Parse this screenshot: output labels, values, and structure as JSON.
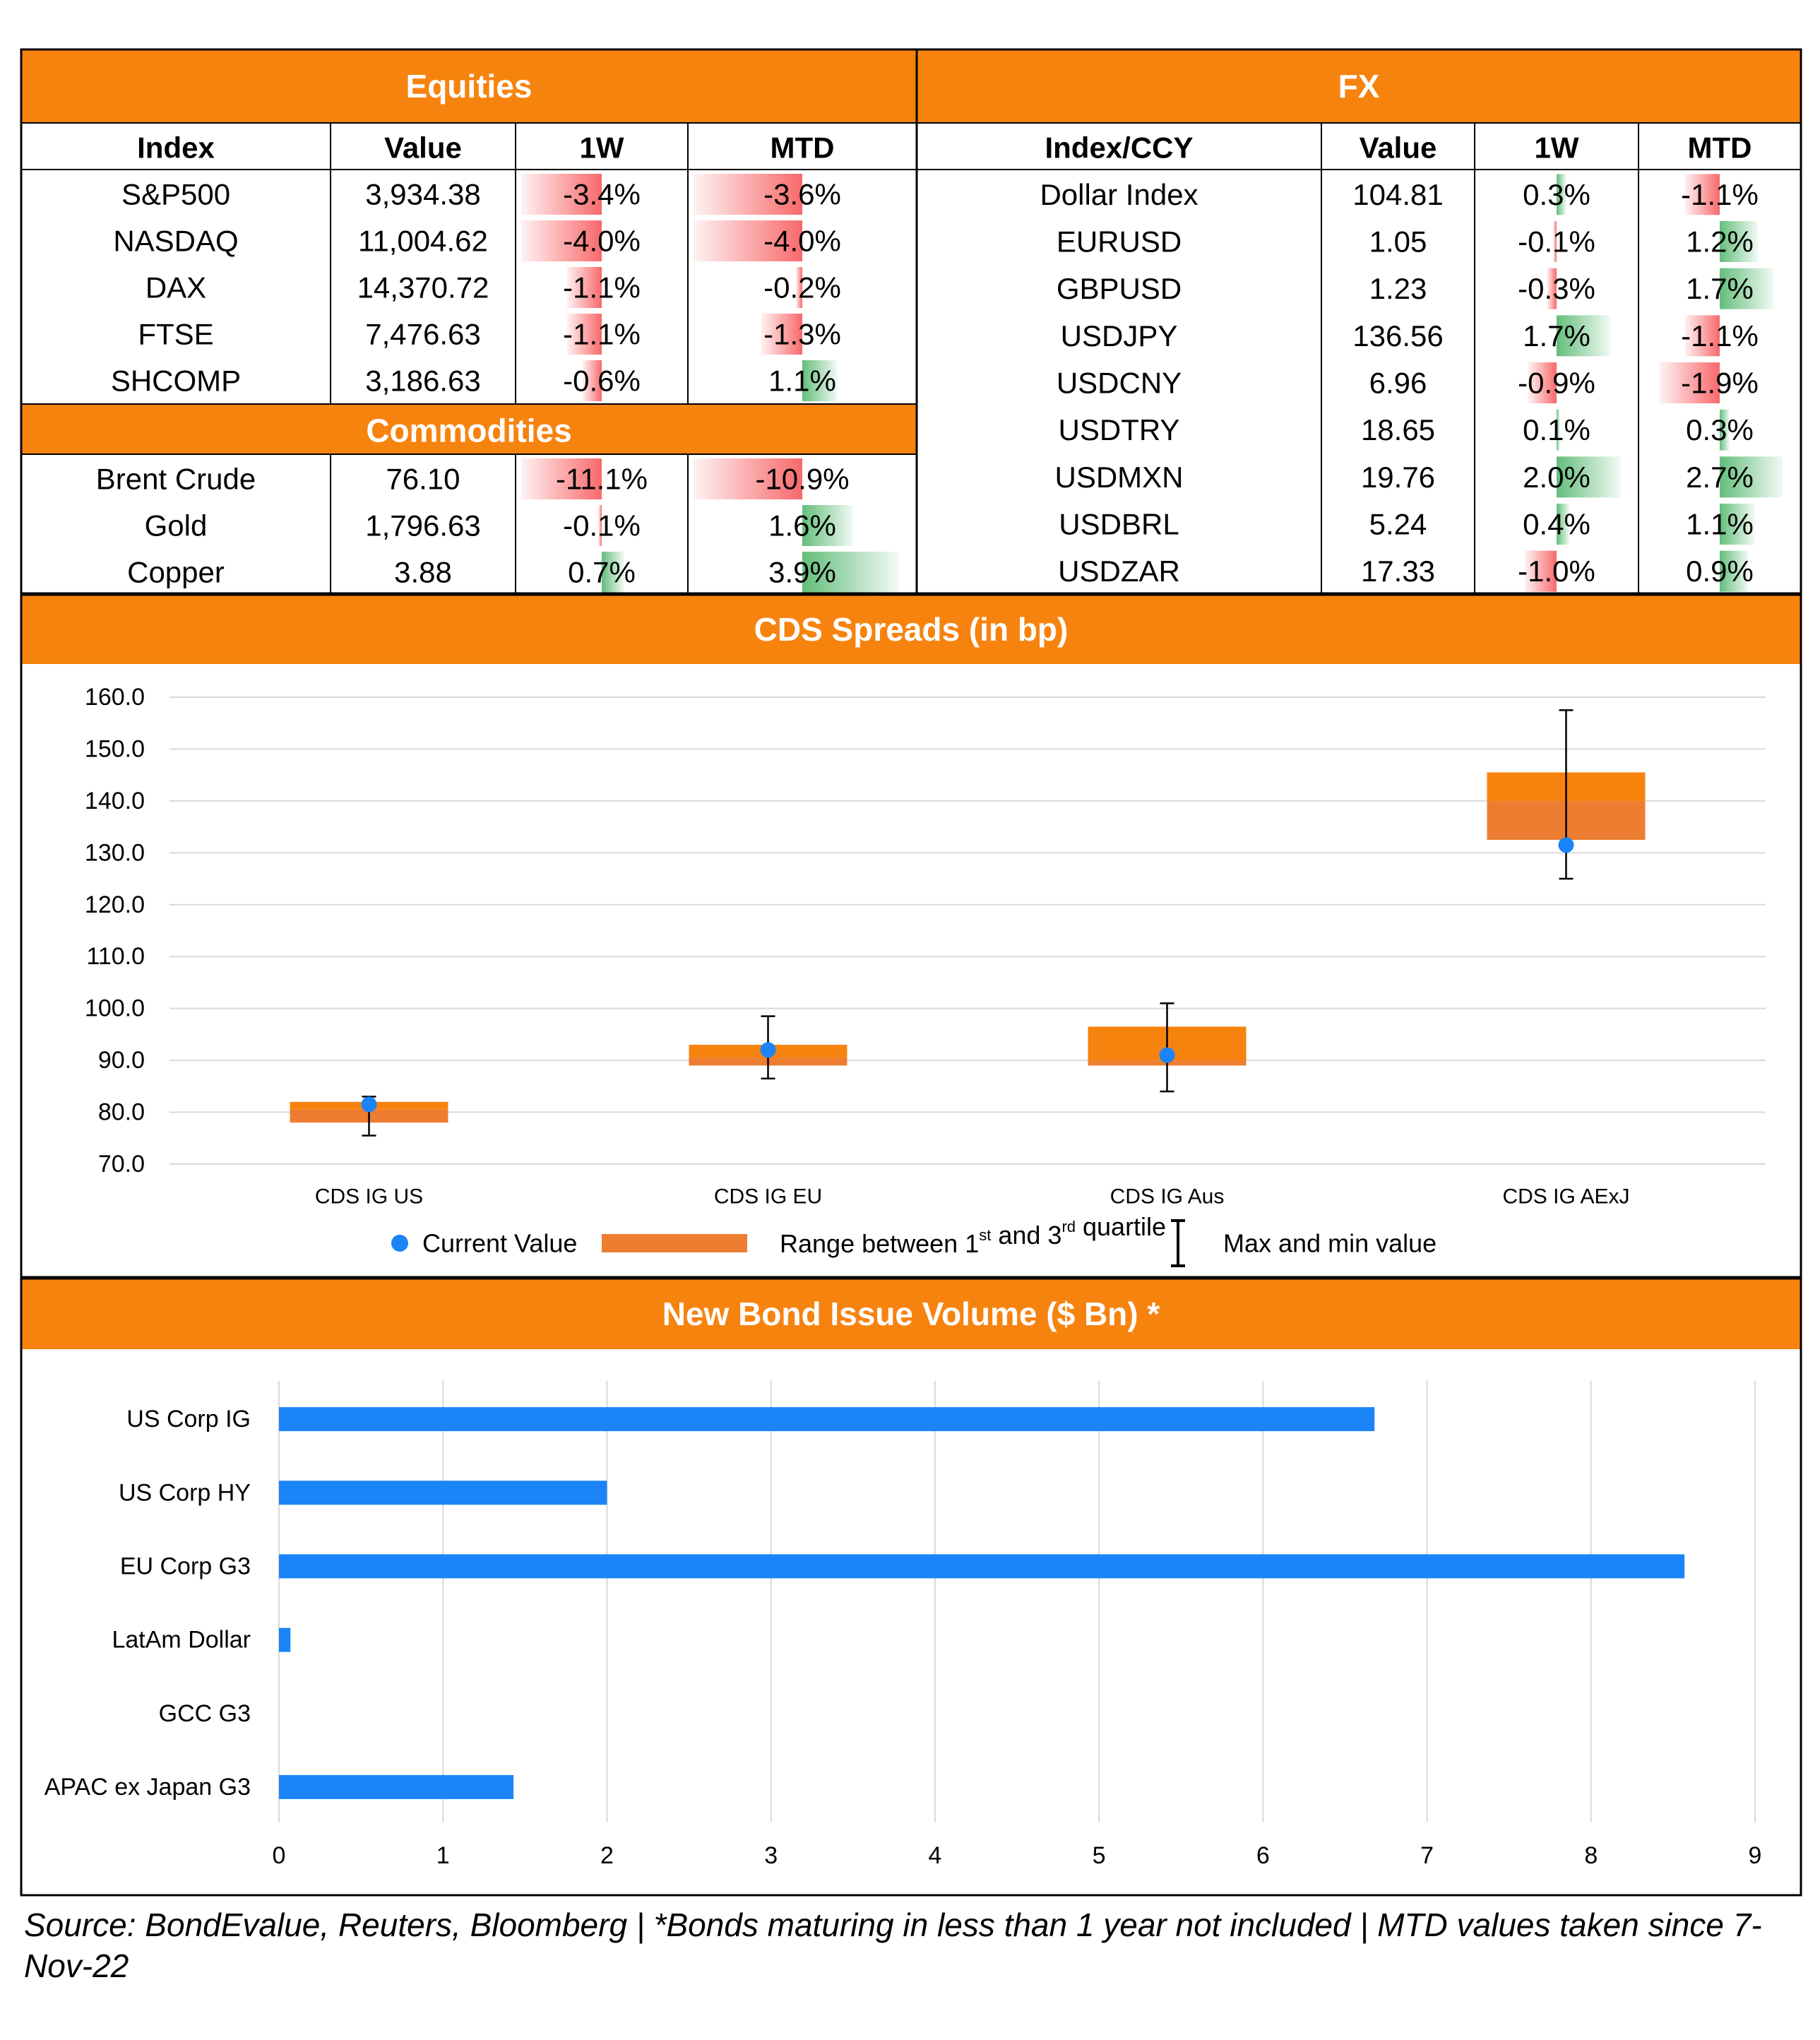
{
  "colors": {
    "orange": "#F7830F",
    "neg_bar": "#F8696B",
    "pos_bar": "#63BE7B",
    "bond_bar": "#1A84F8",
    "dot": "#1A84F8",
    "box": "#ED7D31",
    "grid": "#D9D9D9"
  },
  "equities": {
    "title": "Equities",
    "headers": [
      "Index",
      "Value",
      "1W",
      "MTD"
    ],
    "rows": [
      {
        "name": "S&P500",
        "value": "3,934.38",
        "w1": "-3.4%",
        "mtd": "-3.6%"
      },
      {
        "name": "NASDAQ",
        "value": "11,004.62",
        "w1": "-4.0%",
        "mtd": "-4.0%"
      },
      {
        "name": "DAX",
        "value": "14,370.72",
        "w1": "-1.1%",
        "mtd": "-0.2%"
      },
      {
        "name": "FTSE",
        "value": "7,476.63",
        "w1": "-1.1%",
        "mtd": "-1.3%"
      },
      {
        "name": "SHCOMP",
        "value": "3,186.63",
        "w1": "-0.6%",
        "mtd": "1.1%"
      }
    ]
  },
  "commodities": {
    "title": "Commodities",
    "rows": [
      {
        "name": "Brent Crude",
        "value": "76.10",
        "w1": "-11.1%",
        "mtd": "-10.9%"
      },
      {
        "name": "Gold",
        "value": "1,796.63",
        "w1": "-0.1%",
        "mtd": "1.6%"
      },
      {
        "name": "Copper",
        "value": "3.88",
        "w1": "0.7%",
        "mtd": "3.9%"
      }
    ]
  },
  "fx": {
    "title": "FX",
    "headers": [
      "Index/CCY",
      "Value",
      "1W",
      "MTD"
    ],
    "rows": [
      {
        "name": "Dollar Index",
        "value": "104.81",
        "w1": "0.3%",
        "mtd": "-1.1%"
      },
      {
        "name": "EURUSD",
        "value": "1.05",
        "w1": "-0.1%",
        "mtd": "1.2%"
      },
      {
        "name": "GBPUSD",
        "value": "1.23",
        "w1": "-0.3%",
        "mtd": "1.7%"
      },
      {
        "name": "USDJPY",
        "value": "136.56",
        "w1": "1.7%",
        "mtd": "-1.1%"
      },
      {
        "name": "USDCNY",
        "value": "6.96",
        "w1": "-0.9%",
        "mtd": "-1.9%"
      },
      {
        "name": "USDTRY",
        "value": "18.65",
        "w1": "0.1%",
        "mtd": "0.3%"
      },
      {
        "name": "USDMXN",
        "value": "19.76",
        "w1": "2.0%",
        "mtd": "2.7%"
      },
      {
        "name": "USDBRL",
        "value": "5.24",
        "w1": "0.4%",
        "mtd": "1.1%"
      },
      {
        "name": "USDZAR",
        "value": "17.33",
        "w1": "-1.0%",
        "mtd": "0.9%"
      }
    ]
  },
  "cds": {
    "title": "CDS Spreads (in bp)",
    "legend": {
      "current": "Current Value",
      "range_a": "Range between 1",
      "range_sup1": "st",
      "range_b": " and 3",
      "range_sup2": "rd",
      "range_c": " quartile",
      "maxmin": "Max and min value"
    }
  },
  "bonds": {
    "title": "New Bond Issue Volume ($ Bn) *"
  },
  "chart_data": [
    {
      "type": "box",
      "title": "CDS Spreads (in bp)",
      "categories": [
        "CDS IG US",
        "CDS IG EU",
        "CDS IG Aus",
        "CDS IG AExJ"
      ],
      "q1": [
        78.0,
        89.0,
        89.0,
        132.5
      ],
      "median": [
        80.5,
        90.5,
        90.0,
        140.0
      ],
      "q3": [
        82.0,
        93.0,
        96.5,
        145.5
      ],
      "min": [
        75.5,
        86.5,
        84.0,
        125.0
      ],
      "max": [
        83.0,
        98.5,
        101.0,
        157.5
      ],
      "current": [
        81.5,
        92.0,
        91.0,
        131.5
      ],
      "ylim": [
        70,
        160
      ],
      "yticks": [
        "70.0",
        "80.0",
        "90.0",
        "100.0",
        "110.0",
        "120.0",
        "130.0",
        "140.0",
        "150.0",
        "160.0"
      ],
      "grid": true,
      "legend_position": "bottom"
    },
    {
      "type": "bar",
      "orientation": "horizontal",
      "title": "New Bond Issue Volume ($ Bn) *",
      "categories": [
        "US Corp IG",
        "US Corp HY",
        "EU Corp G3",
        "LatAm Dollar",
        "GCC G3",
        "APAC ex Japan G3"
      ],
      "values": [
        6.68,
        2.0,
        8.57,
        0.07,
        0,
        1.43
      ],
      "xlim": [
        0,
        9
      ],
      "xticks": [
        "0",
        "1",
        "2",
        "3",
        "4",
        "5",
        "6",
        "7",
        "8",
        "9"
      ],
      "grid": true
    }
  ],
  "source": "Source: BondEvalue, Reuters, Bloomberg | *Bonds maturing in less than 1 year not included | MTD values taken since 7-Nov-22"
}
